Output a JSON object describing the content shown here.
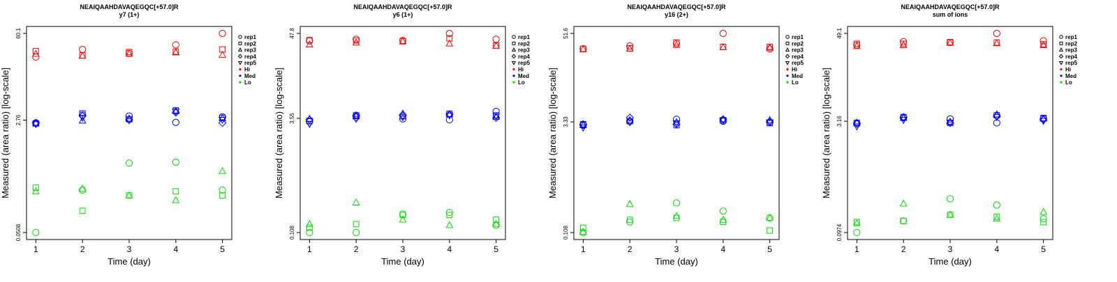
{
  "chart_data": [
    {
      "type": "scatter",
      "title": "NEAIQAAHDAVAQEGQC[+57.0]R",
      "subtitle": "y7 (1+)",
      "xlabel": "Time (day)",
      "ylabel": "Measured (area ratio) [log-scale]",
      "x_ticks": [
        "1",
        "2",
        "3",
        "4",
        "5"
      ],
      "y_ticks": [
        "0.0508",
        "2.76",
        "60.1"
      ],
      "ylim_log": [
        0.0508,
        60.1
      ],
      "series": [
        {
          "group": "Hi",
          "rep": "rep1",
          "x": [
            1,
            2,
            3,
            4,
            5
          ],
          "y": [
            26.0,
            34.0,
            29.5,
            40.0,
            60.1
          ]
        },
        {
          "group": "Hi",
          "rep": "rep2",
          "x": [
            1,
            2,
            3,
            4,
            5
          ],
          "y": [
            32.0,
            27.5,
            31.0,
            31.5,
            34.0
          ]
        },
        {
          "group": "Hi",
          "rep": "rep3",
          "x": [
            1,
            2,
            3,
            4,
            5
          ],
          "y": [
            29.0,
            27.0,
            29.0,
            30.5,
            28.0
          ]
        },
        {
          "group": "Med",
          "rep": "rep1",
          "x": [
            1,
            2,
            3,
            4,
            5
          ],
          "y": [
            2.5,
            3.3,
            3.2,
            2.55,
            3.1
          ]
        },
        {
          "group": "Med",
          "rep": "rep2",
          "x": [
            1,
            2,
            3,
            4,
            5
          ],
          "y": [
            2.45,
            3.5,
            2.85,
            3.9,
            3.0
          ]
        },
        {
          "group": "Med",
          "rep": "rep3",
          "x": [
            1,
            2,
            3,
            4,
            5
          ],
          "y": [
            2.5,
            2.7,
            2.9,
            3.8,
            2.95
          ]
        },
        {
          "group": "Med",
          "rep": "rep4",
          "x": [
            1,
            2,
            3,
            4,
            5
          ],
          "y": [
            2.5,
            3.2,
            2.8,
            3.6,
            2.5
          ]
        },
        {
          "group": "Med",
          "rep": "rep5",
          "x": [
            1,
            2,
            3,
            4,
            5
          ],
          "y": [
            2.4,
            3.0,
            2.75,
            3.75,
            2.8
          ]
        },
        {
          "group": "Lo",
          "rep": "rep1",
          "x": [
            1,
            2,
            3,
            4,
            5
          ],
          "y": [
            0.0508,
            0.23,
            0.6,
            0.62,
            0.23
          ]
        },
        {
          "group": "Lo",
          "rep": "rep2",
          "x": [
            1,
            2,
            3,
            4,
            5
          ],
          "y": [
            0.25,
            0.11,
            0.19,
            0.22,
            0.19
          ]
        },
        {
          "group": "Lo",
          "rep": "rep3",
          "x": [
            1,
            2,
            3,
            4,
            5
          ],
          "y": [
            0.22,
            0.24,
            0.19,
            0.16,
            0.45
          ]
        }
      ]
    },
    {
      "type": "scatter",
      "title": "NEAIQAAHDAVAQEGQC[+57.0]R",
      "subtitle": "y6 (1+)",
      "xlabel": "Time (day)",
      "ylabel": "Measured (area ratio) [log-scale]",
      "x_ticks": [
        "1",
        "2",
        "3",
        "4",
        "5"
      ],
      "y_ticks": [
        "0.108",
        "3.55",
        "47.8"
      ],
      "ylim_log": [
        0.108,
        47.8
      ],
      "series": [
        {
          "group": "Hi",
          "rep": "rep1",
          "x": [
            1,
            2,
            3,
            4,
            5
          ],
          "y": [
            38.0,
            40.0,
            38.5,
            47.8,
            40.0
          ]
        },
        {
          "group": "Hi",
          "rep": "rep2",
          "x": [
            1,
            2,
            3,
            4,
            5
          ],
          "y": [
            39.0,
            38.5,
            37.5,
            41.0,
            33.0
          ]
        },
        {
          "group": "Hi",
          "rep": "rep3",
          "x": [
            1,
            2,
            3,
            4,
            5
          ],
          "y": [
            34.0,
            36.0,
            37.5,
            35.0,
            32.5
          ]
        },
        {
          "group": "Med",
          "rep": "rep1",
          "x": [
            1,
            2,
            3,
            4,
            5
          ],
          "y": [
            3.2,
            3.7,
            3.5,
            3.4,
            4.4
          ]
        },
        {
          "group": "Med",
          "rep": "rep2",
          "x": [
            1,
            2,
            3,
            4,
            5
          ],
          "y": [
            3.3,
            3.9,
            3.8,
            4.1,
            3.9
          ]
        },
        {
          "group": "Med",
          "rep": "rep3",
          "x": [
            1,
            2,
            3,
            4,
            5
          ],
          "y": [
            3.5,
            3.8,
            4.1,
            4.0,
            3.7
          ]
        },
        {
          "group": "Med",
          "rep": "rep4",
          "x": [
            1,
            2,
            3,
            4,
            5
          ],
          "y": [
            3.4,
            3.9,
            3.9,
            4.0,
            3.6
          ]
        },
        {
          "group": "Med",
          "rep": "rep5",
          "x": [
            1,
            2,
            3,
            4,
            5
          ],
          "y": [
            3.0,
            3.5,
            3.7,
            3.9,
            3.8
          ]
        },
        {
          "group": "Lo",
          "rep": "rep1",
          "x": [
            1,
            2,
            3,
            4,
            5
          ],
          "y": [
            0.108,
            0.108,
            0.19,
            0.2,
            0.135
          ]
        },
        {
          "group": "Lo",
          "rep": "rep2",
          "x": [
            1,
            2,
            3,
            4,
            5
          ],
          "y": [
            0.125,
            0.14,
            0.185,
            0.185,
            0.16
          ]
        },
        {
          "group": "Lo",
          "rep": "rep3",
          "x": [
            1,
            2,
            3,
            4,
            5
          ],
          "y": [
            0.14,
            0.27,
            0.16,
            0.135,
            0.14
          ]
        }
      ]
    },
    {
      "type": "scatter",
      "title": "NEAIQAAHDAVAQEGQC[+57.0]R",
      "subtitle": "y16 (2+)",
      "xlabel": "Time (day)",
      "ylabel": "Measured (area ratio) [log-scale]",
      "x_ticks": [
        "1",
        "2",
        "3",
        "4",
        "5"
      ],
      "y_ticks": [
        "0.108",
        "3.33",
        "51.6"
      ],
      "ylim_log": [
        0.108,
        51.6
      ],
      "series": [
        {
          "group": "Hi",
          "rep": "rep1",
          "x": [
            1,
            2,
            3,
            4,
            5
          ],
          "y": [
            32.0,
            35.0,
            37.5,
            51.6,
            32.0
          ]
        },
        {
          "group": "Hi",
          "rep": "rep2",
          "x": [
            1,
            2,
            3,
            4,
            5
          ],
          "y": [
            32.0,
            32.5,
            39.0,
            34.0,
            34.0
          ]
        },
        {
          "group": "Hi",
          "rep": "rep3",
          "x": [
            1,
            2,
            3,
            4,
            5
          ],
          "y": [
            31.5,
            32.0,
            36.0,
            33.5,
            33.0
          ]
        },
        {
          "group": "Med",
          "rep": "rep1",
          "x": [
            1,
            2,
            3,
            4,
            5
          ],
          "y": [
            3.0,
            3.4,
            3.6,
            3.4,
            3.3
          ]
        },
        {
          "group": "Med",
          "rep": "rep2",
          "x": [
            1,
            2,
            3,
            4,
            5
          ],
          "y": [
            3.1,
            3.4,
            3.0,
            3.5,
            3.2
          ]
        },
        {
          "group": "Med",
          "rep": "rep3",
          "x": [
            1,
            2,
            3,
            4,
            5
          ],
          "y": [
            3.0,
            3.5,
            3.3,
            3.6,
            3.5
          ]
        },
        {
          "group": "Med",
          "rep": "rep4",
          "x": [
            1,
            2,
            3,
            4,
            5
          ],
          "y": [
            3.1,
            3.8,
            3.1,
            3.6,
            3.4
          ]
        },
        {
          "group": "Med",
          "rep": "rep5",
          "x": [
            1,
            2,
            3,
            4,
            5
          ],
          "y": [
            2.8,
            3.3,
            3.2,
            3.5,
            3.3
          ]
        },
        {
          "group": "Lo",
          "rep": "rep1",
          "x": [
            1,
            2,
            3,
            4,
            5
          ],
          "y": [
            0.108,
            0.15,
            0.27,
            0.21,
            0.17
          ]
        },
        {
          "group": "Lo",
          "rep": "rep2",
          "x": [
            1,
            2,
            3,
            4,
            5
          ],
          "y": [
            0.125,
            0.16,
            0.17,
            0.15,
            0.115
          ]
        },
        {
          "group": "Lo",
          "rep": "rep3",
          "x": [
            1,
            2,
            3,
            4,
            5
          ],
          "y": [
            0.11,
            0.26,
            0.18,
            0.16,
            0.17
          ]
        }
      ]
    },
    {
      "type": "scatter",
      "title": "NEAIQAAHDAVAQEGQC[+57.0]R",
      "subtitle": "sum of ions",
      "xlabel": "Time (day)",
      "ylabel": "Measured (area ratio) [log-scale]",
      "x_ticks": [
        "1",
        "2",
        "3",
        "4",
        "5"
      ],
      "y_ticks": [
        "0.0974",
        "3.16",
        "49.1"
      ],
      "ylim_log": [
        0.0974,
        49.1
      ],
      "series": [
        {
          "group": "Hi",
          "rep": "rep1",
          "x": [
            1,
            2,
            3,
            4,
            5
          ],
          "y": [
            34.0,
            38.0,
            37.0,
            49.1,
            39.0
          ]
        },
        {
          "group": "Hi",
          "rep": "rep2",
          "x": [
            1,
            2,
            3,
            4,
            5
          ],
          "y": [
            35.5,
            35.5,
            37.5,
            37.0,
            35.0
          ]
        },
        {
          "group": "Hi",
          "rep": "rep3",
          "x": [
            1,
            2,
            3,
            4,
            5
          ],
          "y": [
            33.0,
            34.0,
            36.5,
            36.0,
            34.0
          ]
        },
        {
          "group": "Med",
          "rep": "rep1",
          "x": [
            1,
            2,
            3,
            4,
            5
          ],
          "y": [
            2.9,
            3.5,
            3.4,
            3.0,
            3.4
          ]
        },
        {
          "group": "Med",
          "rep": "rep2",
          "x": [
            1,
            2,
            3,
            4,
            5
          ],
          "y": [
            3.0,
            3.6,
            3.0,
            3.8,
            3.5
          ]
        },
        {
          "group": "Med",
          "rep": "rep3",
          "x": [
            1,
            2,
            3,
            4,
            5
          ],
          "y": [
            3.0,
            3.5,
            3.1,
            3.9,
            3.4
          ]
        },
        {
          "group": "Med",
          "rep": "rep4",
          "x": [
            1,
            2,
            3,
            4,
            5
          ],
          "y": [
            3.0,
            3.6,
            3.0,
            3.7,
            3.3
          ]
        },
        {
          "group": "Med",
          "rep": "rep5",
          "x": [
            1,
            2,
            3,
            4,
            5
          ],
          "y": [
            2.7,
            3.3,
            3.0,
            3.6,
            3.2
          ]
        },
        {
          "group": "Lo",
          "rep": "rep1",
          "x": [
            1,
            2,
            3,
            4,
            5
          ],
          "y": [
            0.0974,
            0.14,
            0.28,
            0.23,
            0.15
          ]
        },
        {
          "group": "Lo",
          "rep": "rep2",
          "x": [
            1,
            2,
            3,
            4,
            5
          ],
          "y": [
            0.135,
            0.14,
            0.17,
            0.16,
            0.135
          ]
        },
        {
          "group": "Lo",
          "rep": "rep3",
          "x": [
            1,
            2,
            3,
            4,
            5
          ],
          "y": [
            0.13,
            0.24,
            0.17,
            0.15,
            0.185
          ]
        }
      ]
    }
  ],
  "legend": {
    "placement": "right",
    "entries": [
      {
        "label": "rep1",
        "marker": "circle"
      },
      {
        "label": "rep2",
        "marker": "square"
      },
      {
        "label": "rep3",
        "marker": "triangle-up"
      },
      {
        "label": "rep4",
        "marker": "diamond"
      },
      {
        "label": "rep5",
        "marker": "triangle-down"
      },
      {
        "label": "Hi",
        "marker": "dot",
        "color": "#ff0000"
      },
      {
        "label": "Med",
        "marker": "dot",
        "color": "#0000ff"
      },
      {
        "label": "Lo",
        "marker": "dot",
        "color": "#00dd00"
      }
    ]
  },
  "colors": {
    "Hi": "#ff0000",
    "Med": "#0000ff",
    "Lo": "#00dd00"
  }
}
